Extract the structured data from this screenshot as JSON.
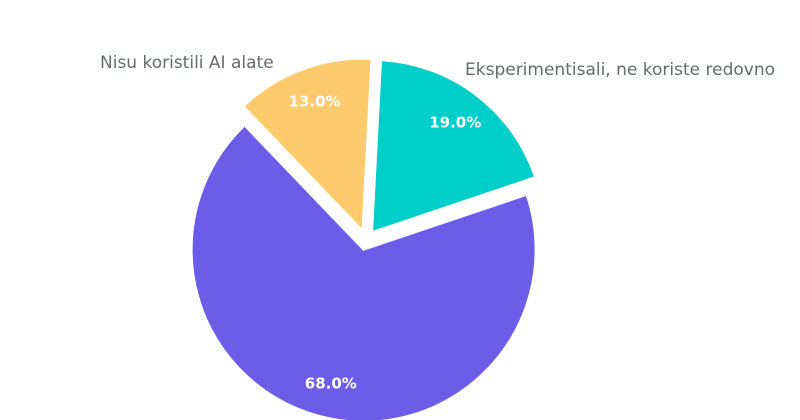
{
  "chart_data": {
    "type": "pie",
    "slices": [
      {
        "name": "Eksperimentisali, ne koriste redovno",
        "value": 19.0,
        "label": "19.0%",
        "color": "#00cec9"
      },
      {
        "name": "",
        "value": 68.0,
        "label": "68.0%",
        "color": "#6c5ce7"
      },
      {
        "name": "Nisu koristili AI alate",
        "value": 13.0,
        "label": "13.0%",
        "color": "#fdcb6e"
      }
    ],
    "start_angle_deg": 3,
    "direction": "clockwise",
    "exploded": true,
    "legend": "none"
  }
}
